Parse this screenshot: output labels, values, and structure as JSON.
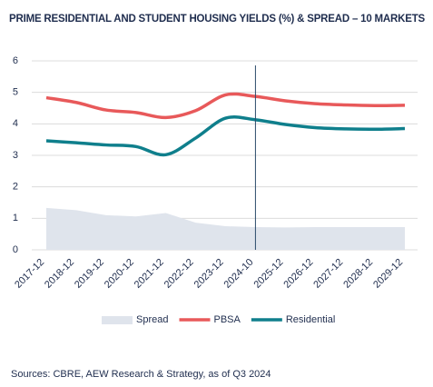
{
  "chart_data": {
    "type": "line",
    "title": "PRIME RESIDENTIAL AND STUDENT HOUSING YIELDS (%) & SPREAD – 10 MARKETS",
    "categories": [
      "2017-12",
      "2018-12",
      "2019-12",
      "2020-12",
      "2021-12",
      "2022-12",
      "2023-12",
      "2024-10",
      "2025-12",
      "2026-12",
      "2027-12",
      "2028-12",
      "2029-12"
    ],
    "series": [
      {
        "name": "Spread",
        "kind": "area",
        "color": "#dfe4ec",
        "values": [
          1.33,
          1.26,
          1.1,
          1.06,
          1.17,
          0.86,
          0.75,
          0.72,
          0.71,
          0.72,
          0.72,
          0.72,
          0.72
        ]
      },
      {
        "name": "PBSA",
        "kind": "line",
        "color": "#e8595a",
        "values": [
          4.83,
          4.68,
          4.44,
          4.36,
          4.2,
          4.42,
          4.92,
          4.87,
          4.73,
          4.64,
          4.6,
          4.58,
          4.59
        ]
      },
      {
        "name": "Residential",
        "kind": "line",
        "color": "#0f7f8c",
        "values": [
          3.46,
          3.4,
          3.33,
          3.28,
          3.02,
          3.55,
          4.18,
          4.13,
          3.98,
          3.88,
          3.84,
          3.83,
          3.85
        ]
      }
    ],
    "ylim": [
      0,
      6
    ],
    "yticks": [
      0,
      1,
      2,
      3,
      4,
      5,
      6
    ],
    "grid": true,
    "vline": "2024-10",
    "legend": "bottom",
    "source": "Sources: CBRE, AEW Research & Strategy, as of Q3 2024"
  }
}
